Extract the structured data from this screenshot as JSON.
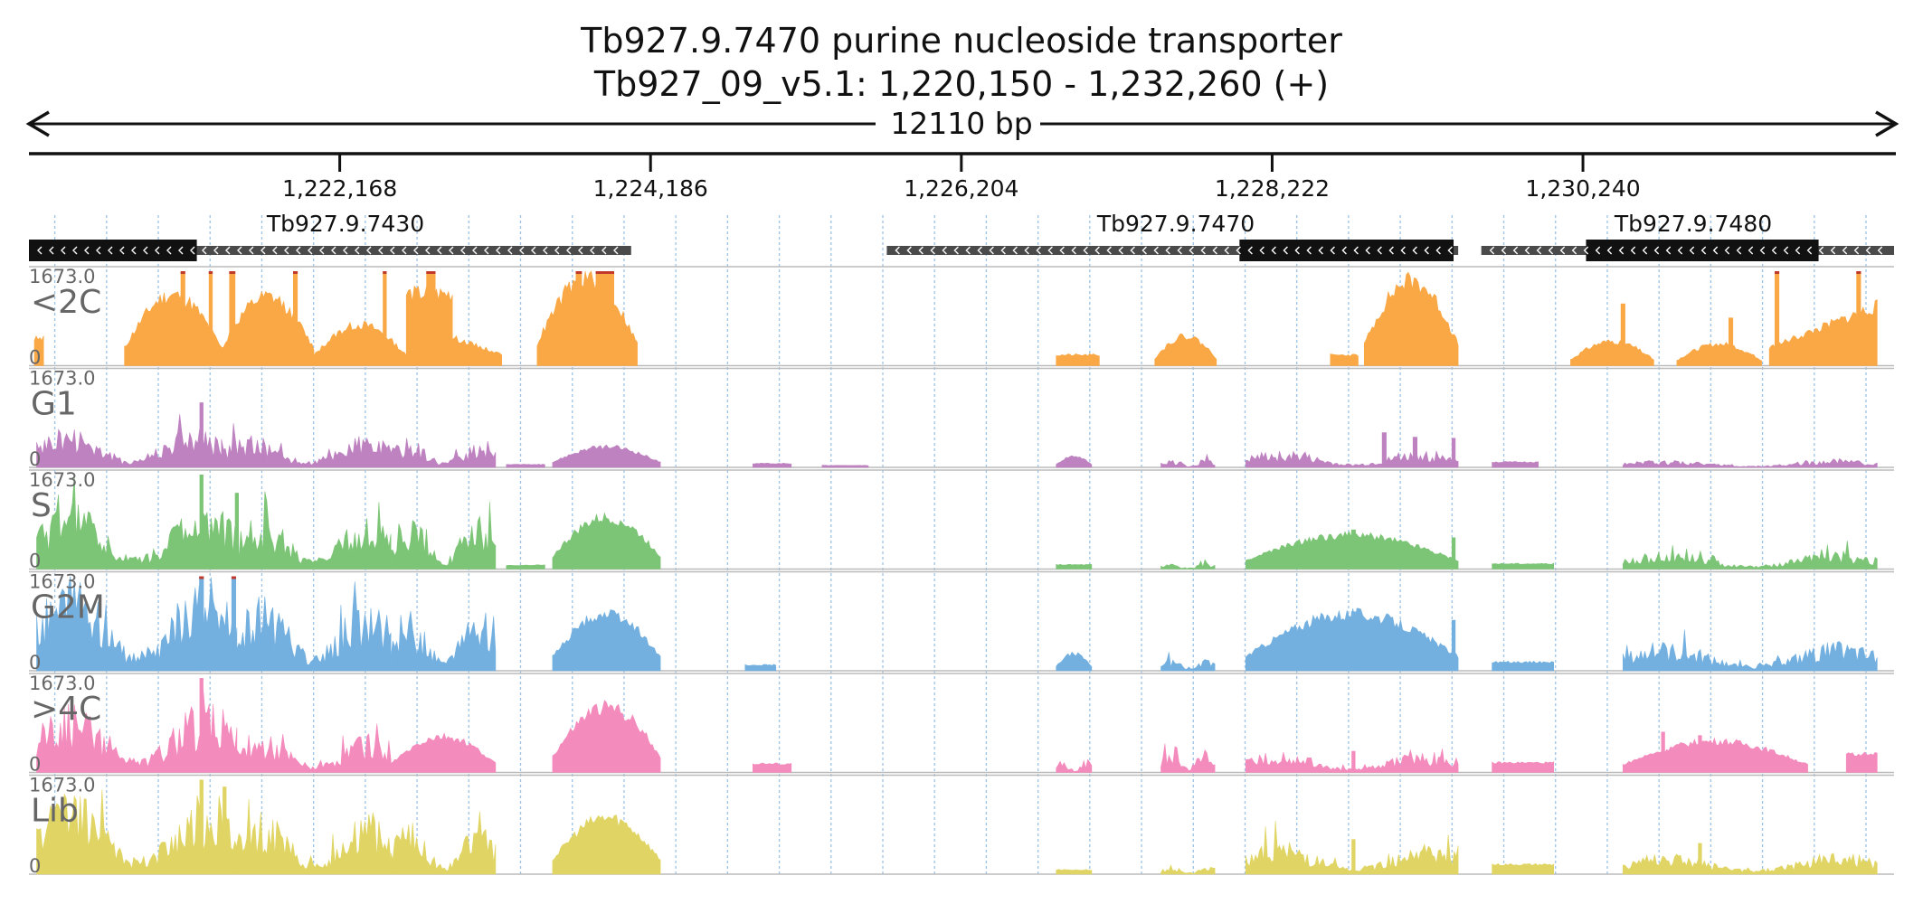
{
  "header": {
    "title": "Tb927.9.7470  purine nucleoside transporter",
    "locus": "Tb927_09_v5.1: 1,220,150 - 1,232,260 (+)",
    "span_label": "12110 bp"
  },
  "chart_data": {
    "type": "area",
    "region": {
      "chrom": "Tb927_09_v5.1",
      "start": 1220150,
      "end": 1232260,
      "strand": "+"
    },
    "x_ticks": [
      {
        "pos": 1222168,
        "label": "1,222,168"
      },
      {
        "pos": 1224186,
        "label": "1,224,186"
      },
      {
        "pos": 1226204,
        "label": "1,226,204"
      },
      {
        "pos": 1228222,
        "label": "1,228,222"
      },
      {
        "pos": 1230240,
        "label": "1,230,240"
      }
    ],
    "genes": [
      {
        "name": "Tb927.9.7430",
        "start": 1220150,
        "end": 1224060,
        "cds_start": 1220150,
        "cds_end": 1221240,
        "strand": "-"
      },
      {
        "name": "Tb927.9.7470",
        "start": 1225720,
        "end": 1229430,
        "cds_start": 1228010,
        "cds_end": 1229400,
        "strand": "-"
      },
      {
        "name": "Tb927.9.7480",
        "start": 1229580,
        "end": 1232260,
        "cds_start": 1230260,
        "cds_end": 1231770,
        "strand": "-"
      }
    ],
    "y_max_label": "1673.0",
    "y_min_label": "0",
    "series": [
      {
        "name": "<2C",
        "color": "#f9a845",
        "clip": true,
        "segments": [
          {
            "start": 1220185,
            "end": 1220245,
            "peak": 560,
            "shape": "flat",
            "seed": 3
          },
          {
            "start": 1220770,
            "end": 1221400,
            "peak": 1250,
            "shape": "hump",
            "seed": 11
          },
          {
            "start": 1221400,
            "end": 1222000,
            "peak": 1200,
            "shape": "hump",
            "seed": 12
          },
          {
            "start": 1222000,
            "end": 1222600,
            "peak": 720,
            "shape": "hump",
            "seed": 13
          },
          {
            "start": 1222600,
            "end": 1222900,
            "peak": 1500,
            "shape": "flat",
            "seed": 14
          },
          {
            "start": 1222900,
            "end": 1223220,
            "peak": 500,
            "shape": "decay",
            "seed": 15
          },
          {
            "start": 1223450,
            "end": 1224100,
            "peak": 1550,
            "shape": "hump",
            "seed": 16
          },
          {
            "start": 1226820,
            "end": 1227100,
            "peak": 220,
            "shape": "flat",
            "seed": 21
          },
          {
            "start": 1227460,
            "end": 1227860,
            "peak": 520,
            "shape": "hump",
            "seed": 22
          },
          {
            "start": 1228600,
            "end": 1228780,
            "peak": 220,
            "shape": "flat",
            "seed": 23
          },
          {
            "start": 1228820,
            "end": 1229430,
            "peak": 1500,
            "shape": "hump",
            "seed": 24
          },
          {
            "start": 1230160,
            "end": 1230700,
            "peak": 430,
            "shape": "hump",
            "seed": 31
          },
          {
            "start": 1230850,
            "end": 1231400,
            "peak": 380,
            "shape": "hump",
            "seed": 32
          },
          {
            "start": 1231450,
            "end": 1232150,
            "peak": 1050,
            "shape": "rise",
            "seed": 33
          }
        ],
        "spikes": [
          {
            "pos": 1221150,
            "height": 1673,
            "width": 30
          },
          {
            "pos": 1221330,
            "height": 1673,
            "width": 25
          },
          {
            "pos": 1221470,
            "height": 1673,
            "width": 40
          },
          {
            "pos": 1221880,
            "height": 1673,
            "width": 30
          },
          {
            "pos": 1222460,
            "height": 1673,
            "width": 25
          },
          {
            "pos": 1222760,
            "height": 1673,
            "width": 60
          },
          {
            "pos": 1223890,
            "height": 1673,
            "width": 120
          },
          {
            "pos": 1223720,
            "height": 1673,
            "width": 40
          },
          {
            "pos": 1230500,
            "height": 1100,
            "width": 30
          },
          {
            "pos": 1231200,
            "height": 850,
            "width": 30
          },
          {
            "pos": 1231500,
            "height": 1673,
            "width": 30
          },
          {
            "pos": 1232030,
            "height": 1673,
            "width": 30
          }
        ]
      },
      {
        "name": "G1",
        "color": "#be82c0",
        "clip": false,
        "segments": [
          {
            "start": 1220200,
            "end": 1221400,
            "peak": 600,
            "shape": "noisy",
            "seed": 41
          },
          {
            "start": 1221400,
            "end": 1222500,
            "peak": 480,
            "shape": "noisy",
            "seed": 42
          },
          {
            "start": 1222500,
            "end": 1223180,
            "peak": 420,
            "shape": "noisy",
            "seed": 43
          },
          {
            "start": 1223250,
            "end": 1223500,
            "peak": 60,
            "shape": "flat",
            "seed": 44
          },
          {
            "start": 1223550,
            "end": 1224250,
            "peak": 360,
            "shape": "hump",
            "seed": 45
          },
          {
            "start": 1224850,
            "end": 1225100,
            "peak": 80,
            "shape": "flat",
            "seed": 46
          },
          {
            "start": 1225300,
            "end": 1225600,
            "peak": 40,
            "shape": "flat",
            "seed": 47
          },
          {
            "start": 1226820,
            "end": 1227050,
            "peak": 200,
            "shape": "hump",
            "seed": 48
          },
          {
            "start": 1227500,
            "end": 1227850,
            "peak": 130,
            "shape": "noisy",
            "seed": 49
          },
          {
            "start": 1228050,
            "end": 1229430,
            "peak": 250,
            "shape": "noisy",
            "seed": 50
          },
          {
            "start": 1229650,
            "end": 1229950,
            "peak": 110,
            "shape": "flat",
            "seed": 51
          },
          {
            "start": 1230500,
            "end": 1232150,
            "peak": 110,
            "shape": "noisy",
            "seed": 52
          }
        ],
        "spikes": [
          {
            "pos": 1221270,
            "height": 1150,
            "width": 25
          },
          {
            "pos": 1228950,
            "height": 620,
            "width": 30
          },
          {
            "pos": 1229150,
            "height": 540,
            "width": 30
          },
          {
            "pos": 1229400,
            "height": 520,
            "width": 25
          }
        ]
      },
      {
        "name": "S",
        "color": "#7dc576",
        "clip": false,
        "segments": [
          {
            "start": 1220200,
            "end": 1221500,
            "peak": 950,
            "shape": "noisy",
            "seed": 61
          },
          {
            "start": 1221500,
            "end": 1222500,
            "peak": 780,
            "shape": "noisy",
            "seed": 62
          },
          {
            "start": 1222500,
            "end": 1223180,
            "peak": 820,
            "shape": "noisy",
            "seed": 63
          },
          {
            "start": 1223250,
            "end": 1223500,
            "peak": 80,
            "shape": "flat",
            "seed": 64
          },
          {
            "start": 1223550,
            "end": 1224250,
            "peak": 900,
            "shape": "hump",
            "seed": 65
          },
          {
            "start": 1226820,
            "end": 1227050,
            "peak": 90,
            "shape": "flat",
            "seed": 66
          },
          {
            "start": 1227500,
            "end": 1227850,
            "peak": 90,
            "shape": "noisy",
            "seed": 67
          },
          {
            "start": 1228050,
            "end": 1229430,
            "peak": 600,
            "shape": "hump",
            "seed": 68
          },
          {
            "start": 1229650,
            "end": 1230050,
            "peak": 110,
            "shape": "flat",
            "seed": 69
          },
          {
            "start": 1230500,
            "end": 1232150,
            "peak": 260,
            "shape": "noisy",
            "seed": 70
          }
        ],
        "spikes": [
          {
            "pos": 1221270,
            "height": 1673,
            "width": 25
          },
          {
            "pos": 1221500,
            "height": 1350,
            "width": 25
          },
          {
            "pos": 1228750,
            "height": 700,
            "width": 30
          },
          {
            "pos": 1229400,
            "height": 560,
            "width": 25
          }
        ]
      },
      {
        "name": "G2M",
        "color": "#73b0e0",
        "clip": true,
        "segments": [
          {
            "start": 1220200,
            "end": 1221500,
            "peak": 1400,
            "shape": "noisy",
            "seed": 81
          },
          {
            "start": 1221500,
            "end": 1222500,
            "peak": 1100,
            "shape": "noisy",
            "seed": 82
          },
          {
            "start": 1222500,
            "end": 1223180,
            "peak": 900,
            "shape": "noisy",
            "seed": 83
          },
          {
            "start": 1223550,
            "end": 1224250,
            "peak": 1000,
            "shape": "hump",
            "seed": 84
          },
          {
            "start": 1224800,
            "end": 1225000,
            "peak": 120,
            "shape": "flat",
            "seed": 85
          },
          {
            "start": 1226820,
            "end": 1227050,
            "peak": 300,
            "shape": "hump",
            "seed": 86
          },
          {
            "start": 1227500,
            "end": 1227850,
            "peak": 170,
            "shape": "noisy",
            "seed": 87
          },
          {
            "start": 1228050,
            "end": 1229430,
            "peak": 1000,
            "shape": "hump",
            "seed": 88
          },
          {
            "start": 1229650,
            "end": 1230050,
            "peak": 180,
            "shape": "flat",
            "seed": 89
          },
          {
            "start": 1230500,
            "end": 1232150,
            "peak": 420,
            "shape": "noisy",
            "seed": 90
          }
        ],
        "spikes": [
          {
            "pos": 1221270,
            "height": 1673,
            "width": 30
          },
          {
            "pos": 1221480,
            "height": 1673,
            "width": 30
          },
          {
            "pos": 1228750,
            "height": 1050,
            "width": 30
          },
          {
            "pos": 1229400,
            "height": 900,
            "width": 25
          }
        ]
      },
      {
        "name": ">4C",
        "color": "#f48bbd",
        "clip": false,
        "segments": [
          {
            "start": 1220200,
            "end": 1221500,
            "peak": 1050,
            "shape": "noisy",
            "seed": 101
          },
          {
            "start": 1221500,
            "end": 1222500,
            "peak": 550,
            "shape": "noisy",
            "seed": 102
          },
          {
            "start": 1222500,
            "end": 1223180,
            "peak": 620,
            "shape": "hump",
            "seed": 103
          },
          {
            "start": 1223550,
            "end": 1224250,
            "peak": 1150,
            "shape": "hump",
            "seed": 104
          },
          {
            "start": 1224850,
            "end": 1225100,
            "peak": 180,
            "shape": "flat",
            "seed": 105
          },
          {
            "start": 1226820,
            "end": 1227050,
            "peak": 200,
            "shape": "noisy",
            "seed": 106
          },
          {
            "start": 1227500,
            "end": 1227850,
            "peak": 340,
            "shape": "noisy",
            "seed": 107
          },
          {
            "start": 1228050,
            "end": 1229430,
            "peak": 300,
            "shape": "noisy",
            "seed": 108
          },
          {
            "start": 1229650,
            "end": 1230050,
            "peak": 200,
            "shape": "flat",
            "seed": 109
          },
          {
            "start": 1230500,
            "end": 1231700,
            "peak": 550,
            "shape": "hump",
            "seed": 110
          },
          {
            "start": 1231950,
            "end": 1232150,
            "peak": 380,
            "shape": "flat",
            "seed": 111
          }
        ],
        "spikes": [
          {
            "pos": 1221270,
            "height": 1673,
            "width": 25
          },
          {
            "pos": 1228750,
            "height": 380,
            "width": 25
          },
          {
            "pos": 1230760,
            "height": 720,
            "width": 25
          },
          {
            "pos": 1231000,
            "height": 660,
            "width": 25
          }
        ]
      },
      {
        "name": "Lib",
        "color": "#e0d564",
        "clip": false,
        "segments": [
          {
            "start": 1220200,
            "end": 1221500,
            "peak": 1200,
            "shape": "noisy",
            "seed": 121
          },
          {
            "start": 1221500,
            "end": 1222500,
            "peak": 900,
            "shape": "noisy",
            "seed": 122
          },
          {
            "start": 1222500,
            "end": 1223180,
            "peak": 750,
            "shape": "noisy",
            "seed": 123
          },
          {
            "start": 1223550,
            "end": 1224250,
            "peak": 1000,
            "shape": "hump",
            "seed": 124
          },
          {
            "start": 1226820,
            "end": 1227050,
            "peak": 90,
            "shape": "flat",
            "seed": 125
          },
          {
            "start": 1227500,
            "end": 1227850,
            "peak": 110,
            "shape": "noisy",
            "seed": 126
          },
          {
            "start": 1228050,
            "end": 1229430,
            "peak": 480,
            "shape": "noisy",
            "seed": 127
          },
          {
            "start": 1229650,
            "end": 1230050,
            "peak": 200,
            "shape": "flat",
            "seed": 128
          },
          {
            "start": 1230500,
            "end": 1232150,
            "peak": 320,
            "shape": "noisy",
            "seed": 129
          }
        ],
        "spikes": [
          {
            "pos": 1221270,
            "height": 1673,
            "width": 25
          },
          {
            "pos": 1221420,
            "height": 1550,
            "width": 25
          },
          {
            "pos": 1228750,
            "height": 620,
            "width": 25
          },
          {
            "pos": 1231000,
            "height": 550,
            "width": 25
          }
        ]
      }
    ]
  }
}
